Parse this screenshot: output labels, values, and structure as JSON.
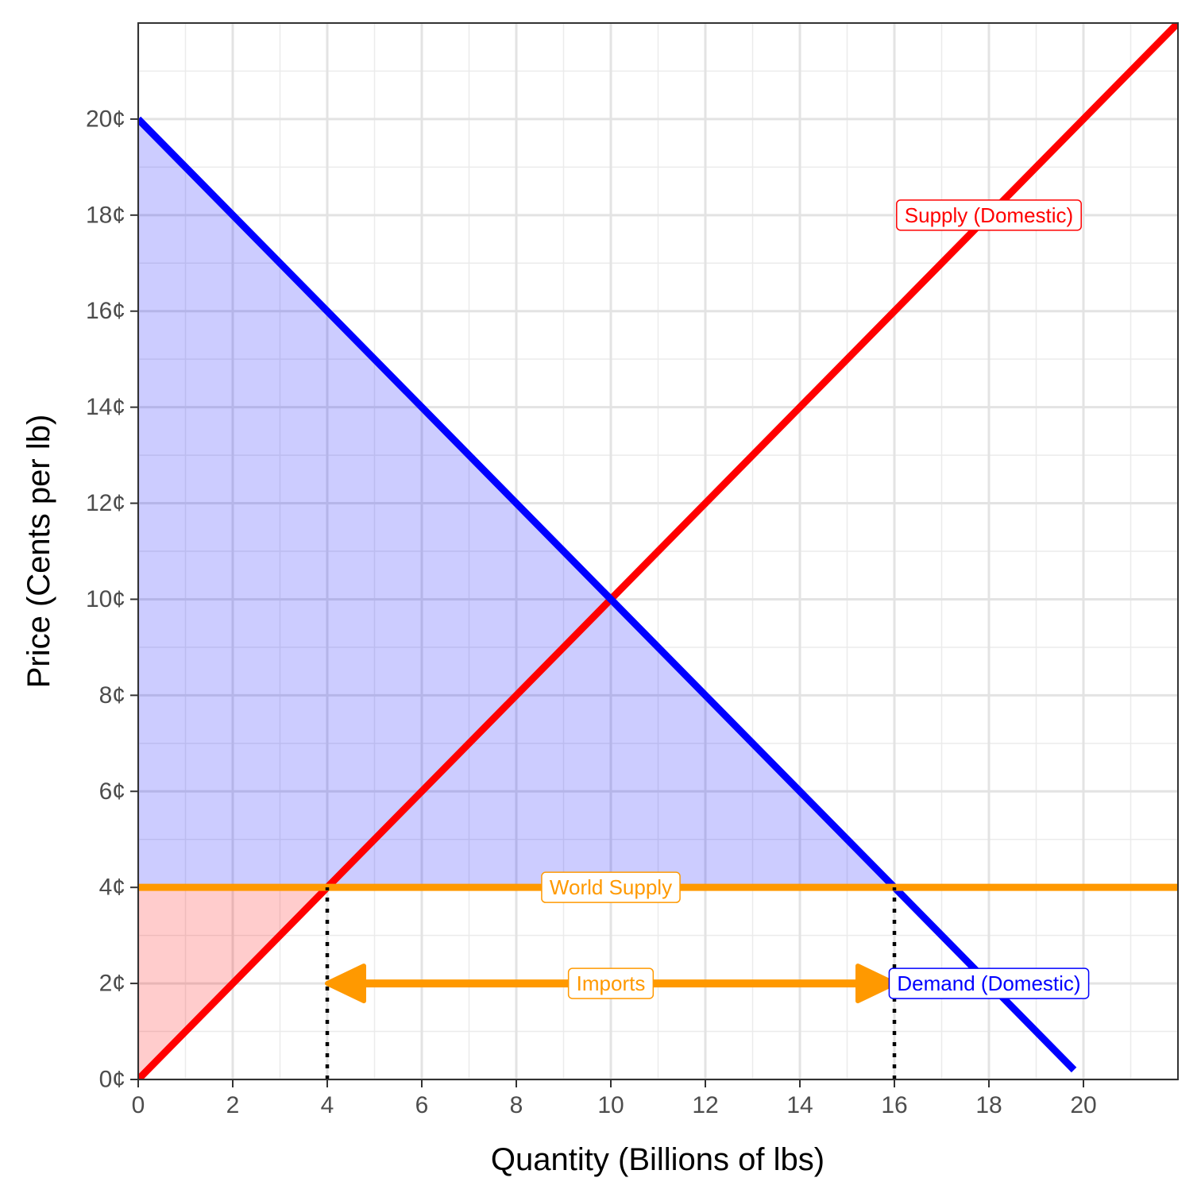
{
  "chart_data": {
    "type": "line",
    "xlabel": "Quantity (Billions of lbs)",
    "ylabel": "Price (Cents per lb)",
    "xlim": [
      0,
      22
    ],
    "ylim": [
      0,
      22
    ],
    "x_ticks": [
      0,
      2,
      4,
      6,
      8,
      10,
      12,
      14,
      16,
      18,
      20
    ],
    "x_tick_labels": [
      "0",
      "2",
      "4",
      "6",
      "8",
      "10",
      "12",
      "14",
      "16",
      "18",
      "20"
    ],
    "y_ticks": [
      0,
      2,
      4,
      6,
      8,
      10,
      12,
      14,
      16,
      18,
      20
    ],
    "y_tick_labels": [
      "0¢",
      "2¢",
      "4¢",
      "6¢",
      "8¢",
      "10¢",
      "12¢",
      "14¢",
      "16¢",
      "18¢",
      "20¢"
    ],
    "grid": true,
    "series": [
      {
        "name": "Supply (Domestic)",
        "color": "#ff0000",
        "points": [
          [
            0,
            0
          ],
          [
            22,
            22
          ]
        ]
      },
      {
        "name": "Demand (Domestic)",
        "color": "#0000ff",
        "points": [
          [
            0,
            20
          ],
          [
            19.8,
            0.2
          ]
        ]
      },
      {
        "name": "World Supply",
        "color": "#ff9900",
        "points": [
          [
            0,
            4
          ],
          [
            22,
            4
          ]
        ]
      }
    ],
    "shaded_regions": [
      {
        "region": "consumer surplus",
        "color": "#0000ff",
        "opacity": 0.2,
        "points": [
          [
            0,
            20
          ],
          [
            16,
            4
          ],
          [
            0,
            4
          ]
        ]
      },
      {
        "region": "producer surplus",
        "color": "#ff0000",
        "opacity": 0.2,
        "points": [
          [
            0,
            0
          ],
          [
            4,
            4
          ],
          [
            0,
            4
          ]
        ]
      }
    ],
    "reference_lines": [
      {
        "style": "dotted",
        "color": "#000000",
        "points": [
          [
            4,
            0
          ],
          [
            4,
            4
          ]
        ]
      },
      {
        "style": "dotted",
        "color": "#000000",
        "points": [
          [
            16,
            0
          ],
          [
            16,
            4
          ]
        ]
      }
    ],
    "arrow": {
      "label": "Imports",
      "color": "#ff9900",
      "from": [
        4,
        2
      ],
      "to": [
        16,
        2
      ],
      "double_headed": true
    },
    "labels": [
      {
        "text": "Supply (Domestic)",
        "x": 18,
        "y": 18,
        "color": "#ff0000"
      },
      {
        "text": "World Supply",
        "x": 10,
        "y": 4,
        "color": "#ff9900"
      },
      {
        "text": "Imports",
        "x": 10,
        "y": 2,
        "color": "#ff9900"
      },
      {
        "text": "Demand (Domestic)",
        "x": 18,
        "y": 2,
        "color": "#0000ff"
      }
    ]
  }
}
